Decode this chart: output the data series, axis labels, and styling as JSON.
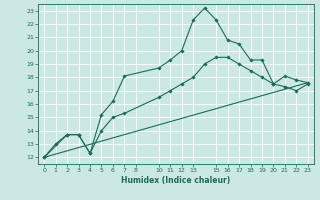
{
  "title": "",
  "xlabel": "Humidex (Indice chaleur)",
  "ylabel": "",
  "background_color": "#cce8e4",
  "grid_color": "#ffffff",
  "line_color": "#1a6b5a",
  "xlim": [
    -0.5,
    23.5
  ],
  "ylim": [
    11.5,
    23.5
  ],
  "xticks": [
    0,
    1,
    2,
    3,
    4,
    5,
    6,
    7,
    8,
    10,
    11,
    12,
    13,
    15,
    16,
    17,
    18,
    19,
    20,
    21,
    22,
    23
  ],
  "yticks": [
    12,
    13,
    14,
    15,
    16,
    17,
    18,
    19,
    20,
    21,
    22,
    23
  ],
  "series1_x": [
    0,
    1,
    2,
    3,
    4,
    5,
    6,
    7,
    10,
    11,
    12,
    13,
    14,
    15,
    16,
    17,
    18,
    19,
    20,
    21,
    22,
    23
  ],
  "series1_y": [
    12,
    13,
    13.7,
    13.7,
    12.3,
    15.2,
    16.2,
    18.1,
    18.7,
    19.3,
    20.0,
    22.3,
    23.2,
    22.3,
    20.8,
    20.5,
    19.3,
    19.3,
    17.5,
    18.1,
    17.8,
    17.6
  ],
  "series2_x": [
    0,
    2,
    3,
    4,
    5,
    6,
    7,
    10,
    11,
    12,
    13,
    14,
    15,
    16,
    17,
    18,
    19,
    20,
    21,
    22,
    23
  ],
  "series2_y": [
    12,
    13.7,
    13.7,
    12.3,
    14.0,
    15.0,
    15.3,
    16.5,
    17.0,
    17.5,
    18.0,
    19.0,
    19.5,
    19.5,
    19.0,
    18.5,
    18.0,
    17.5,
    17.3,
    17.0,
    17.5
  ],
  "series3_x": [
    0,
    23
  ],
  "series3_y": [
    12,
    17.6
  ]
}
